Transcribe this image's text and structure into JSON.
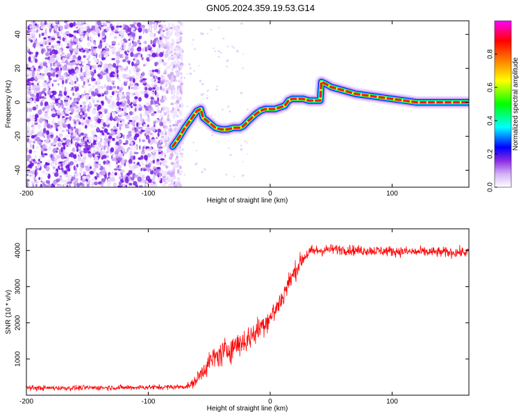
{
  "title": "GN05.2024.359.19.53.G14",
  "chart_data": [
    {
      "type": "heatmap",
      "xlabel": "Height of straight line (km)",
      "ylabel": "Frequency (Hz)",
      "xlim": [
        -200,
        163
      ],
      "ylim": [
        -50,
        48
      ],
      "xticks": [
        -200,
        -100,
        0,
        100
      ],
      "yticks": [
        -40,
        -20,
        0,
        20,
        40
      ],
      "colorbar": {
        "label": "Normalized spectral amplitude",
        "range": [
          0,
          1
        ],
        "ticks": [
          0.0,
          0.2,
          0.4,
          0.6,
          0.8
        ],
        "colormap": [
          "#ffffff",
          "#d4b0f8",
          "#8a2be2",
          "#0000ff",
          "#00ffff",
          "#00ff00",
          "#ffff00",
          "#ff8000",
          "#ff0000",
          "#ff00ff"
        ]
      },
      "noise_region_x": [
        -200,
        -78
      ],
      "frequency_track": {
        "x": [
          -80,
          -75,
          -70,
          -65,
          -60,
          -57,
          -55,
          -50,
          -45,
          -40,
          -35,
          -30,
          -25,
          -22,
          -18,
          -12,
          -8,
          -4,
          0,
          4,
          8,
          12,
          15,
          18,
          22,
          27,
          32,
          38,
          41,
          42,
          45,
          50,
          55,
          60,
          70,
          80,
          90,
          100,
          110,
          120,
          130,
          140,
          150,
          160,
          163
        ],
        "y": [
          -26,
          -21,
          -15,
          -10,
          -5,
          -4,
          -9,
          -12,
          -15,
          -16,
          -16,
          -15,
          -15,
          -14,
          -11,
          -7,
          -5,
          -4,
          -4,
          -4,
          -3,
          -2,
          1,
          2,
          2,
          2,
          1,
          1,
          1,
          12,
          11,
          9,
          8,
          7,
          5,
          4,
          3,
          2,
          1,
          0,
          0,
          0,
          0,
          0,
          0
        ]
      }
    },
    {
      "type": "line",
      "xlabel": "Height of straight line (km)",
      "ylabel": "SNR (10 * v/v)",
      "xlim": [
        -200,
        163
      ],
      "ylim": [
        0,
        4600
      ],
      "xticks": [
        -200,
        -100,
        0,
        100
      ],
      "yticks": [
        1000,
        2000,
        3000,
        4000
      ],
      "color": "#ff0000",
      "x": [
        -200,
        -180,
        -160,
        -140,
        -120,
        -100,
        -90,
        -80,
        -75,
        -70,
        -65,
        -60,
        -55,
        -50,
        -45,
        -40,
        -35,
        -30,
        -25,
        -20,
        -15,
        -10,
        -5,
        0,
        5,
        10,
        15,
        20,
        25,
        30,
        35,
        40,
        50,
        60,
        70,
        80,
        90,
        100,
        110,
        120,
        130,
        140,
        150,
        160,
        163
      ],
      "y": [
        200,
        200,
        200,
        210,
        210,
        220,
        220,
        230,
        230,
        240,
        280,
        450,
        700,
        900,
        1050,
        1150,
        1250,
        1350,
        1450,
        1500,
        1650,
        1800,
        2000,
        2150,
        2400,
        2700,
        3100,
        3400,
        3700,
        3900,
        3980,
        4000,
        4030,
        4030,
        4000,
        4000,
        3990,
        3980,
        3970,
        3960,
        3960,
        3950,
        3950,
        3950,
        3950
      ],
      "noise_amplitude": [
        80,
        80,
        80,
        80,
        80,
        80,
        80,
        80,
        80,
        80,
        120,
        200,
        300,
        350,
        380,
        400,
        420,
        420,
        420,
        400,
        400,
        400,
        380,
        380,
        380,
        360,
        330,
        300,
        260,
        220,
        200,
        180,
        160,
        160,
        160,
        160,
        160,
        160,
        160,
        160,
        160,
        160,
        160,
        160,
        160
      ]
    }
  ]
}
